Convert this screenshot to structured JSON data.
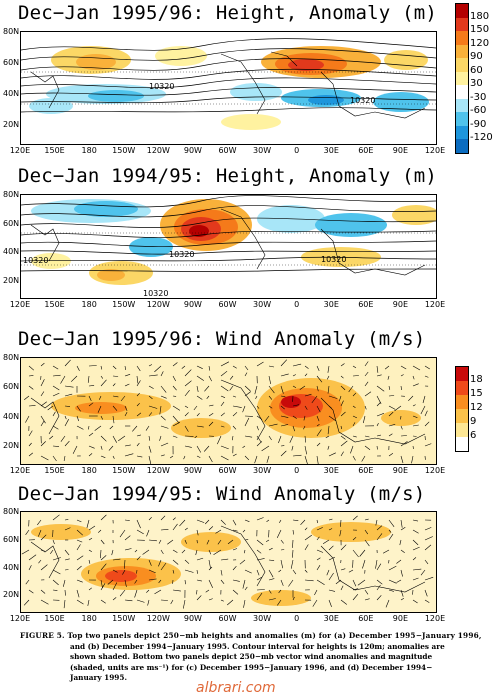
{
  "panels": [
    {
      "title": "Dec−Jan 1995/96: Height, Anomaly (m)",
      "contour_label_1": "10320",
      "contour_label_2": "10320"
    },
    {
      "title": "Dec−Jan 1994/95: Height, Anomaly (m)",
      "contour_label_1": "10320",
      "contour_label_2": "10320",
      "contour_label_3": "10320",
      "contour_label_4": "10320"
    },
    {
      "title": "Dec−Jan 1995/96: Wind Anomaly (m/s)"
    },
    {
      "title": "Dec−Jan 1994/95: Wind Anomaly (m/s)"
    }
  ],
  "lat_labels": [
    "80N",
    "60N",
    "40N",
    "20N"
  ],
  "lon_labels": [
    "120E",
    "150E",
    "180",
    "150W",
    "120W",
    "90W",
    "60W",
    "30W",
    "0",
    "30E",
    "60E",
    "90E",
    "120E"
  ],
  "height_legend": {
    "labels": [
      "180",
      "150",
      "120",
      "90",
      "60",
      "30",
      "-30",
      "-60",
      "-90",
      "-120"
    ],
    "colors": [
      "#b40000",
      "#e2391c",
      "#f57a1a",
      "#f9b13a",
      "#fbd766",
      "#fff2a0",
      "#ffffff",
      "#a8e6f8",
      "#4fc3ec",
      "#1e96dc",
      "#0b6cc0"
    ]
  },
  "wind_legend": {
    "labels": [
      "18",
      "15",
      "12",
      "9",
      "6"
    ],
    "colors": [
      "#c80a0a",
      "#ef4a1a",
      "#f98e20",
      "#fbc24a",
      "#fde794",
      "#ffffff"
    ]
  },
  "caption": {
    "line1": "FIGURE 5.  Top two panels depict 250−mb heights and anomalies (m) for (a) December 1995−January 1996,",
    "line2": "and (b) December 1994−January 1995. Contour interval for heights is 120m; anomalies are",
    "line3": "shown shaded. Bottom two panels depict 250−mb vector wind anomalies and magnitude",
    "line4": "(shaded, units are ms⁻¹) for (c) December 1995−January 1996, and  (d) December 1994−",
    "line5": "January 1995."
  },
  "watermark": "albrari.com"
}
